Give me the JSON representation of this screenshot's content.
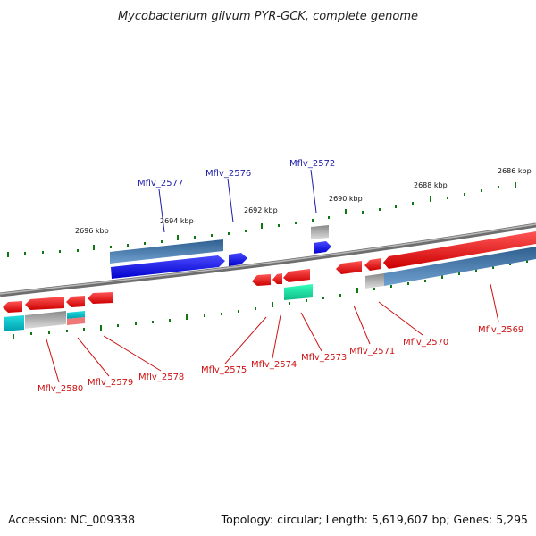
{
  "title": "Mycobacterium gilvum PYR-GCK, complete genome",
  "footer": {
    "accession": "Accession: NC_009338",
    "summary": "Topology: circular; Length: 5,619,607 bp; Genes: 5,295"
  },
  "colors": {
    "forward_cds": "#0a0af0",
    "reverse_cds": "#ee1111",
    "gene_bar": "#4a7fb4",
    "gene_bar_light": "#aaaaaa",
    "rna": "#22ddaa",
    "backbone": "#888888",
    "tick": "#117711",
    "label_blue": "#1a1aaa",
    "label_red": "#cc1111"
  },
  "scale_labels": [
    "2696 kbp",
    "2694 kbp",
    "2692 kbp",
    "2690 kbp",
    "2688 kbp",
    "2686 kbp"
  ],
  "genes_top": [
    {
      "label": "Mflv_2577"
    },
    {
      "label": "Mflv_2576"
    },
    {
      "label": "Mflv_2572"
    }
  ],
  "genes_bottom": [
    {
      "label": "Mflv_2580"
    },
    {
      "label": "Mflv_2579"
    },
    {
      "label": "Mflv_2578"
    },
    {
      "label": "Mflv_2575"
    },
    {
      "label": "Mflv_2574"
    },
    {
      "label": "Mflv_2573"
    },
    {
      "label": "Mflv_2571"
    },
    {
      "label": "Mflv_2570"
    },
    {
      "label": "Mflv_2569"
    }
  ]
}
